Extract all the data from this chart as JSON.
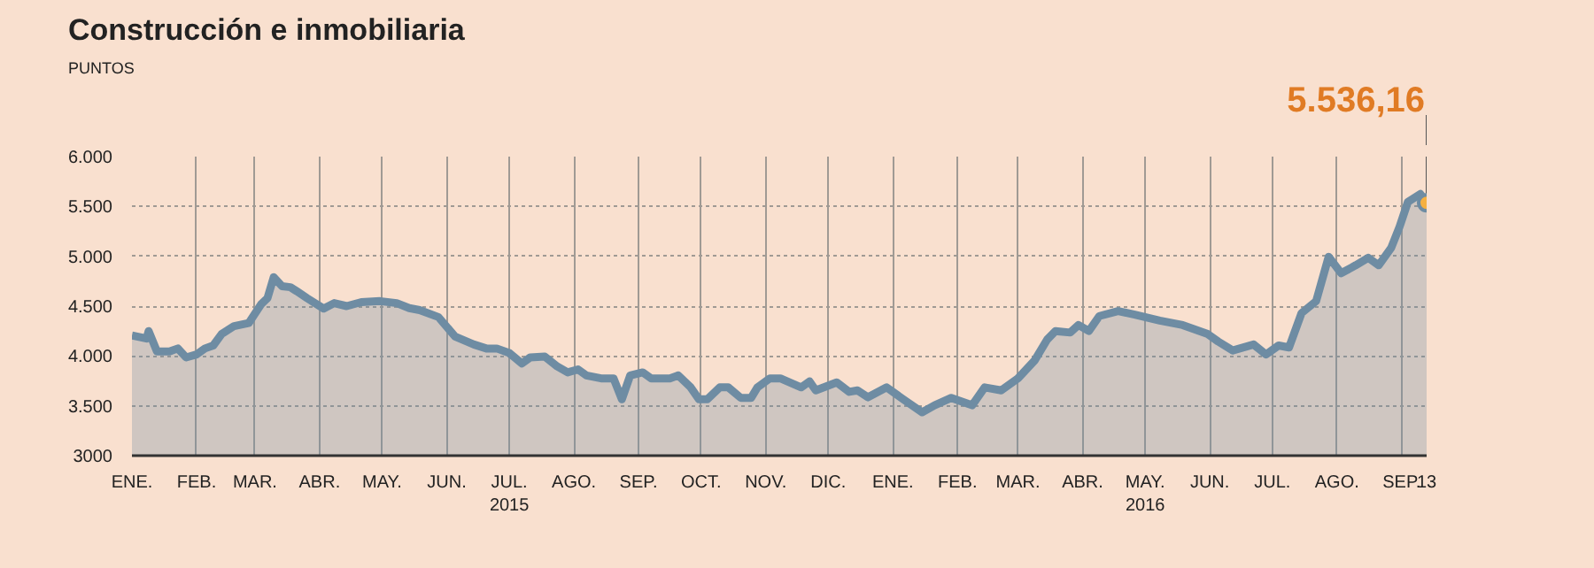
{
  "chart_data": {
    "type": "area",
    "title": "Construcción e inmobiliaria",
    "subtitle": "PUNTOS",
    "x": [
      "2015-01-01",
      "2015-01-08",
      "2015-01-09",
      "2015-01-13",
      "2015-01-19",
      "2015-01-23",
      "2015-01-27",
      "2015-02-01",
      "2015-02-05",
      "2015-02-09",
      "2015-02-13",
      "2015-02-19",
      "2015-02-26",
      "2015-03-04",
      "2015-03-07",
      "2015-03-10",
      "2015-03-14",
      "2015-03-18",
      "2015-03-21",
      "2015-03-26",
      "2015-04-03",
      "2015-04-08",
      "2015-04-14",
      "2015-04-21",
      "2015-04-30",
      "2015-05-08",
      "2015-05-14",
      "2015-05-19",
      "2015-05-28",
      "2015-06-05",
      "2015-06-14",
      "2015-06-20",
      "2015-06-25",
      "2015-07-01",
      "2015-07-07",
      "2015-07-11",
      "2015-07-18",
      "2015-07-24",
      "2015-07-29",
      "2015-08-03",
      "2015-08-07",
      "2015-08-14",
      "2015-08-20",
      "2015-08-24",
      "2015-08-28",
      "2015-09-03",
      "2015-09-07",
      "2015-09-16",
      "2015-09-20",
      "2015-09-26",
      "2015-09-30",
      "2015-10-04",
      "2015-10-10",
      "2015-10-14",
      "2015-10-20",
      "2015-10-25",
      "2015-10-28",
      "2015-11-03",
      "2015-11-08",
      "2015-11-18",
      "2015-11-22",
      "2015-11-25",
      "2015-12-05",
      "2015-12-11",
      "2015-12-15",
      "2015-12-20",
      "2015-12-29",
      "2016-01-06",
      "2016-01-15",
      "2016-01-21",
      "2016-01-29",
      "2016-02-08",
      "2016-02-14",
      "2016-02-22",
      "2016-03-01",
      "2016-03-09",
      "2016-03-15",
      "2016-03-19",
      "2016-03-26",
      "2016-03-30",
      "2016-04-04",
      "2016-04-09",
      "2016-04-18",
      "2016-04-26",
      "2016-05-08",
      "2016-05-19",
      "2016-05-31",
      "2016-06-05",
      "2016-06-12",
      "2016-06-22",
      "2016-06-28",
      "2016-07-04",
      "2016-07-09",
      "2016-07-15",
      "2016-07-22",
      "2016-07-28",
      "2016-08-03",
      "2016-08-10",
      "2016-08-16",
      "2016-08-21",
      "2016-08-27",
      "2016-08-31",
      "2016-09-04",
      "2016-09-10",
      "2016-09-13"
    ],
    "series": [
      {
        "color": "#6e8ca3",
        "values": [
          4205,
          4175,
          4250,
          4045,
          4045,
          4075,
          3985,
          4015,
          4075,
          4105,
          4220,
          4300,
          4330,
          4520,
          4580,
          4790,
          4700,
          4690,
          4650,
          4580,
          4475,
          4530,
          4500,
          4540,
          4550,
          4530,
          4480,
          4460,
          4390,
          4195,
          4115,
          4075,
          4075,
          4030,
          3925,
          3985,
          3995,
          3895,
          3835,
          3865,
          3805,
          3775,
          3775,
          3565,
          3805,
          3835,
          3775,
          3775,
          3805,
          3685,
          3565,
          3565,
          3685,
          3685,
          3580,
          3580,
          3685,
          3775,
          3775,
          3685,
          3745,
          3655,
          3735,
          3640,
          3655,
          3585,
          3685,
          3565,
          3435,
          3505,
          3580,
          3505,
          3685,
          3655,
          3775,
          3955,
          4165,
          4250,
          4235,
          4310,
          4250,
          4400,
          4450,
          4415,
          4355,
          4310,
          4220,
          4145,
          4055,
          4115,
          4015,
          4105,
          4085,
          4430,
          4550,
          4995,
          4830,
          4910,
          4985,
          4910,
          5085,
          5295,
          5545,
          5625,
          5536.16
        ]
      }
    ],
    "annotations": [
      {
        "text": "5.536,16",
        "x": "2016-09-13",
        "y": 5536.16
      }
    ],
    "xlim": [
      "2015-01-01",
      "2016-09-13"
    ],
    "xticks": [
      {
        "value": "2015-01-01",
        "label": "ENE."
      },
      {
        "value": "2015-02-01",
        "label": "FEB."
      },
      {
        "value": "2015-03-01",
        "label": "MAR."
      },
      {
        "value": "2015-04-01",
        "label": "ABR."
      },
      {
        "value": "2015-05-01",
        "label": "MAY."
      },
      {
        "value": "2015-06-01",
        "label": "JUN."
      },
      {
        "value": "2015-07-01",
        "label": "JUL.\n2015"
      },
      {
        "value": "2015-08-01",
        "label": "AGO."
      },
      {
        "value": "2015-09-01",
        "label": "SEP."
      },
      {
        "value": "2015-10-01",
        "label": "OCT."
      },
      {
        "value": "2015-11-01",
        "label": "NOV."
      },
      {
        "value": "2015-12-01",
        "label": "DIC."
      },
      {
        "value": "2016-01-01",
        "label": "ENE."
      },
      {
        "value": "2016-02-01",
        "label": "FEB."
      },
      {
        "value": "2016-03-01",
        "label": "MAR."
      },
      {
        "value": "2016-04-01",
        "label": "ABR."
      },
      {
        "value": "2016-05-01",
        "label": "MAY.\n2016"
      },
      {
        "value": "2016-06-01",
        "label": "JUN."
      },
      {
        "value": "2016-07-01",
        "label": "JUL."
      },
      {
        "value": "2016-08-01",
        "label": "AGO."
      },
      {
        "value": "2016-09-01",
        "label": "SEP."
      },
      {
        "value": "2016-09-13",
        "label": "13"
      }
    ],
    "ylim": [
      3000,
      6000
    ],
    "yticks": [
      {
        "value": 3000,
        "label": "3000"
      },
      {
        "value": 3500,
        "label": "3.500"
      },
      {
        "value": 4000,
        "label": "4.000"
      },
      {
        "value": 4500,
        "label": "4.500"
      },
      {
        "value": 5000,
        "label": "5.000"
      },
      {
        "value": 5500,
        "label": "5.500"
      },
      {
        "value": 6000,
        "label": "6.000"
      }
    ],
    "grid": true,
    "line_style": "solid"
  }
}
